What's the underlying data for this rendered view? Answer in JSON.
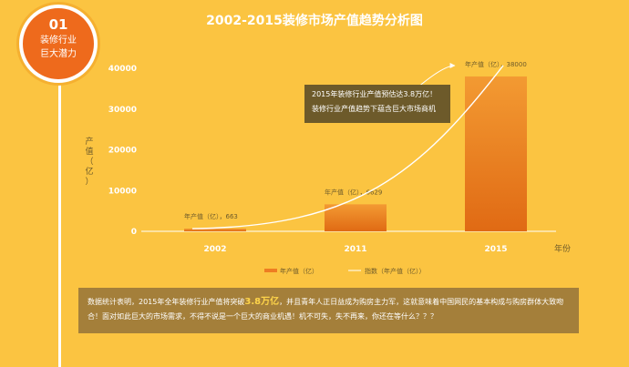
{
  "badge": {
    "number": "01",
    "line1": "装修行业",
    "line2": "巨大潜力"
  },
  "chart_data": {
    "type": "bar",
    "title": "2002-2015装修市场产值趋势分析图",
    "categories": [
      "2002",
      "2011",
      "2015"
    ],
    "values": [
      663,
      6629,
      38000
    ],
    "data_labels": [
      "年产值（亿），663",
      "年产值（亿），6629",
      "年产值（亿），38000"
    ],
    "ylabel": "产值（亿）",
    "xlabel": "年份",
    "ylim": [
      0,
      40000
    ],
    "yticks": [
      "0",
      "10000",
      "20000",
      "30000",
      "40000"
    ],
    "legend": [
      "年产值（亿）",
      "指数（年产值（亿））"
    ],
    "legend_position": "bottom",
    "grid": false,
    "trendline": "exponential",
    "bar_color": "#ee7d22",
    "trend_color": "#ffffff"
  },
  "callout": {
    "line1": "2015年装修行业产值预估达3.8万亿！",
    "line2": "装修行业产值趋势下蕴含巨大市场商机"
  },
  "summary": {
    "pre": "数据统计表明，2015年全年装修行业产值将突破",
    "highlight": "3.8万亿",
    "post": "，并且青年人正日益成为购房主力军，这就意味着中国网民的基本构成与购房群体大致吻合！面对如此巨大的市场需求，不得不说是一个巨大的商业机遇！机不可失，失不再来，你还在等什么？？？"
  }
}
